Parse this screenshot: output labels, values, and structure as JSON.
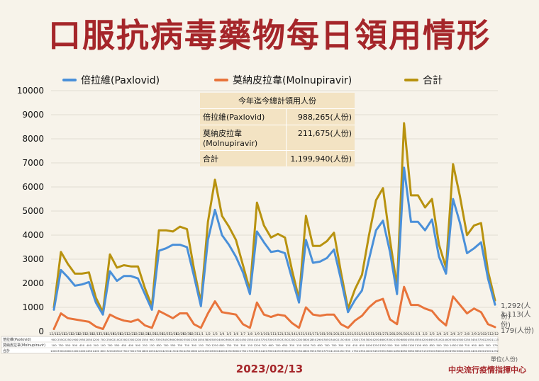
{
  "title": "口服抗病毒藥物每日領用情形",
  "date": "2023/02/13",
  "unit_note": "單位(人份)",
  "source": "中央流行疫情指揮中心",
  "summary": {
    "header": "今年迄今總計領用人份",
    "rows": [
      {
        "label": "倍拉維(Paxlovid)",
        "value": "988,265(人份)"
      },
      {
        "label": "莫納皮拉韋 (Molnupiravir)",
        "value": "211,675(人份)"
      },
      {
        "label": "合計",
        "value": "1,199,940(人份)"
      }
    ]
  },
  "end_labels": {
    "total": "1,292(人份)",
    "paxlovid": "1,113(人份)",
    "molnupiravir": "179(人份)"
  },
  "colors": {
    "paxlovid": "#4a90d9",
    "molnupiravir": "#e8743b",
    "total": "#b8920f",
    "title": "#a5262a"
  },
  "chart_data": {
    "type": "line",
    "ylim": [
      0,
      10000
    ],
    "yticks": [
      "0",
      "1000",
      "2000",
      "3000",
      "4000",
      "5000",
      "6000",
      "7000",
      "8000",
      "9000",
      "10000"
    ],
    "grid": true,
    "legend_position": "top",
    "x": [
      "12/11",
      "12/12",
      "12/13",
      "12/14",
      "12/15",
      "12/16",
      "12/17",
      "12/18",
      "12/19",
      "12/20",
      "12/21",
      "12/22",
      "12/23",
      "12/24",
      "12/25",
      "12/26",
      "12/27",
      "12/28",
      "12/29",
      "12/30",
      "12/31",
      "1/1",
      "1/2",
      "1/3",
      "1/4",
      "1/5",
      "1/6",
      "1/7",
      "1/8",
      "1/9",
      "1/10",
      "1/11",
      "1/12",
      "1/13",
      "1/14",
      "1/15",
      "1/16",
      "1/17",
      "1/18",
      "1/19",
      "1/20",
      "1/21",
      "1/22",
      "1/23",
      "1/24",
      "1/25",
      "1/26",
      "1/27",
      "1/28",
      "1/29",
      "1/30",
      "1/31",
      "2/1",
      "2/2",
      "2/3",
      "2/4",
      "2/5",
      "2/6",
      "2/7",
      "2/8",
      "2/9",
      "2/10",
      "2/11",
      "2/12"
    ],
    "series": [
      {
        "name": "倍拉維(Paxlovid)",
        "values": [
          900,
          2550,
          2250,
          1900,
          1950,
          2050,
          1200,
          700,
          2500,
          2100,
          2300,
          2300,
          2200,
          1550,
          900,
          3350,
          3450,
          3600,
          3600,
          3500,
          2300,
          1050,
          3800,
          5050,
          4000,
          3600,
          3100,
          2450,
          1550,
          4150,
          3700,
          3300,
          3350,
          3250,
          2200,
          1200,
          3800,
          2850,
          2900,
          3050,
          3400,
          2150,
          800,
          1300,
          1700,
          3000,
          4200,
          4600,
          3300,
          1550,
          6800,
          4550,
          4550,
          4200,
          4650,
          3100,
          2400,
          5500,
          4500,
          3250,
          3450,
          3700,
          2200,
          1113
        ]
      },
      {
        "name": "莫納皮拉韋(Molnupiravir)",
        "values": [
          100,
          750,
          550,
          500,
          450,
          400,
          200,
          100,
          700,
          550,
          450,
          400,
          500,
          250,
          150,
          850,
          700,
          550,
          750,
          750,
          300,
          150,
          750,
          1250,
          800,
          750,
          700,
          300,
          150,
          1200,
          700,
          600,
          700,
          650,
          350,
          150,
          1000,
          700,
          650,
          700,
          700,
          300,
          150,
          450,
          650,
          1000,
          1250,
          1350,
          500,
          300,
          1850,
          1100,
          1100,
          950,
          850,
          500,
          250,
          1450,
          1100,
          750,
          950,
          800,
          300,
          179
        ]
      },
      {
        "name": "合計",
        "values": [
          1000,
          3300,
          2800,
          2400,
          2400,
          2450,
          1400,
          800,
          3200,
          2650,
          2750,
          2700,
          2700,
          1800,
          1050,
          4200,
          4200,
          4150,
          4350,
          4250,
          2600,
          1200,
          4550,
          6300,
          4800,
          4350,
          3800,
          2750,
          1700,
          5350,
          4400,
          3900,
          4050,
          3900,
          2550,
          1350,
          4800,
          3550,
          3550,
          3750,
          4100,
          2450,
          950,
          1750,
          2350,
          4000,
          5450,
          5950,
          3800,
          1850,
          8650,
          5650,
          5650,
          5150,
          5500,
          3600,
          2650,
          6950,
          5600,
          4000,
          4400,
          4500,
          2500,
          1292
        ]
      }
    ]
  },
  "table_rows": [
    "倍拉維(Paxlovid)",
    "莫納皮拉韋(Molnupiravir)",
    "合計"
  ]
}
